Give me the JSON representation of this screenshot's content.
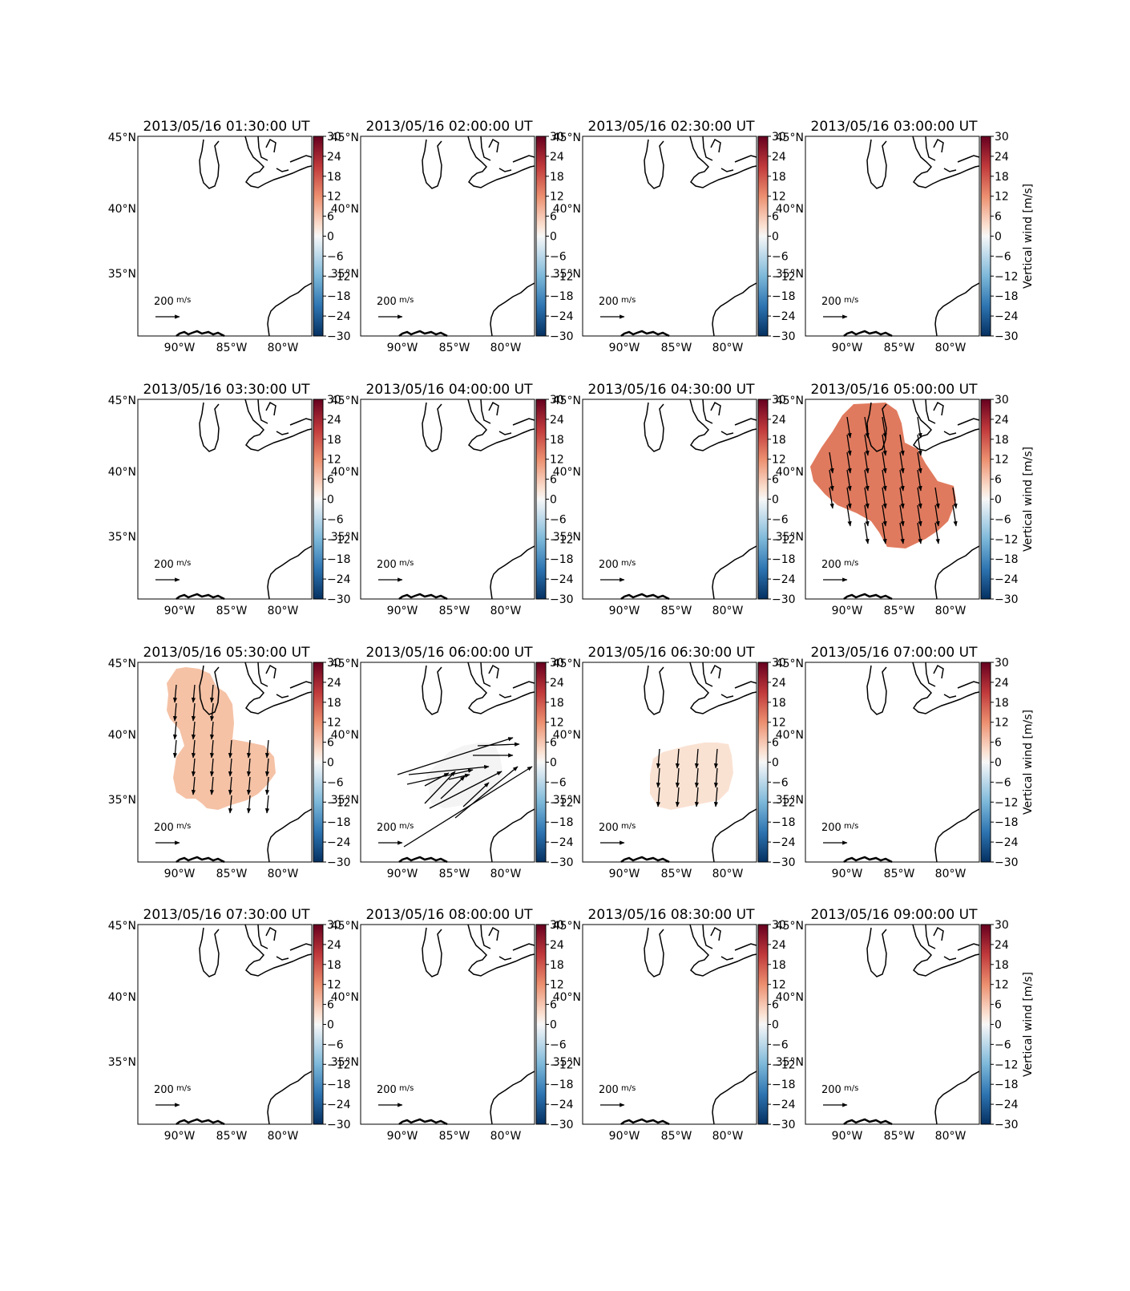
{
  "figure": {
    "date": "2013/05/16",
    "time_suffix": "UT",
    "colorbar_label": "Vertical wind [m/s]",
    "colorbar_ticks": [
      "30",
      "24",
      "18",
      "12",
      "6",
      "0",
      "−6",
      "−12",
      "−18",
      "−24",
      "−30"
    ],
    "lat_labels": [
      "45°N",
      "40°N",
      "35°N"
    ],
    "lon_labels": [
      "90°W",
      "85°W",
      "80°W"
    ],
    "reference_vector_label": "200",
    "reference_vector_unit": "m/s",
    "colormap": "RdBu_r",
    "colormap_range": [
      -30,
      30
    ]
  },
  "panels": [
    {
      "title": "2013/05/16 01:30:00 UT",
      "field": null
    },
    {
      "title": "2013/05/16 02:00:00 UT",
      "field": null
    },
    {
      "title": "2013/05/16 02:30:00 UT",
      "field": null
    },
    {
      "title": "2013/05/16 03:00:00 UT",
      "field": null
    },
    {
      "title": "2013/05/16 03:30:00 UT",
      "field": null
    },
    {
      "title": "2013/05/16 04:00:00 UT",
      "field": null
    },
    {
      "title": "2013/05/16 04:30:00 UT",
      "field": null
    },
    {
      "title": "2013/05/16 05:00:00 UT",
      "field": {
        "vertical_wind": 14,
        "color": "#e07a5e",
        "region": "central-eastern US"
      }
    },
    {
      "title": "2013/05/16 05:30:00 UT",
      "field": {
        "vertical_wind": 7,
        "color": "#f5c2a6",
        "region": "central US"
      }
    },
    {
      "title": "2013/05/16 06:00:00 UT",
      "field": {
        "vertical_wind": 0,
        "color": "#f4f4f4",
        "region": "south-central US"
      }
    },
    {
      "title": "2013/05/16 06:30:00 UT",
      "field": {
        "vertical_wind": 3,
        "color": "#fae2d3",
        "region": "south-eastern US"
      }
    },
    {
      "title": "2013/05/16 07:00:00 UT",
      "field": null
    },
    {
      "title": "2013/05/16 07:30:00 UT",
      "field": null
    },
    {
      "title": "2013/05/16 08:00:00 UT",
      "field": null
    },
    {
      "title": "2013/05/16 08:30:00 UT",
      "field": null
    },
    {
      "title": "2013/05/16 09:00:00 UT",
      "field": null
    }
  ]
}
